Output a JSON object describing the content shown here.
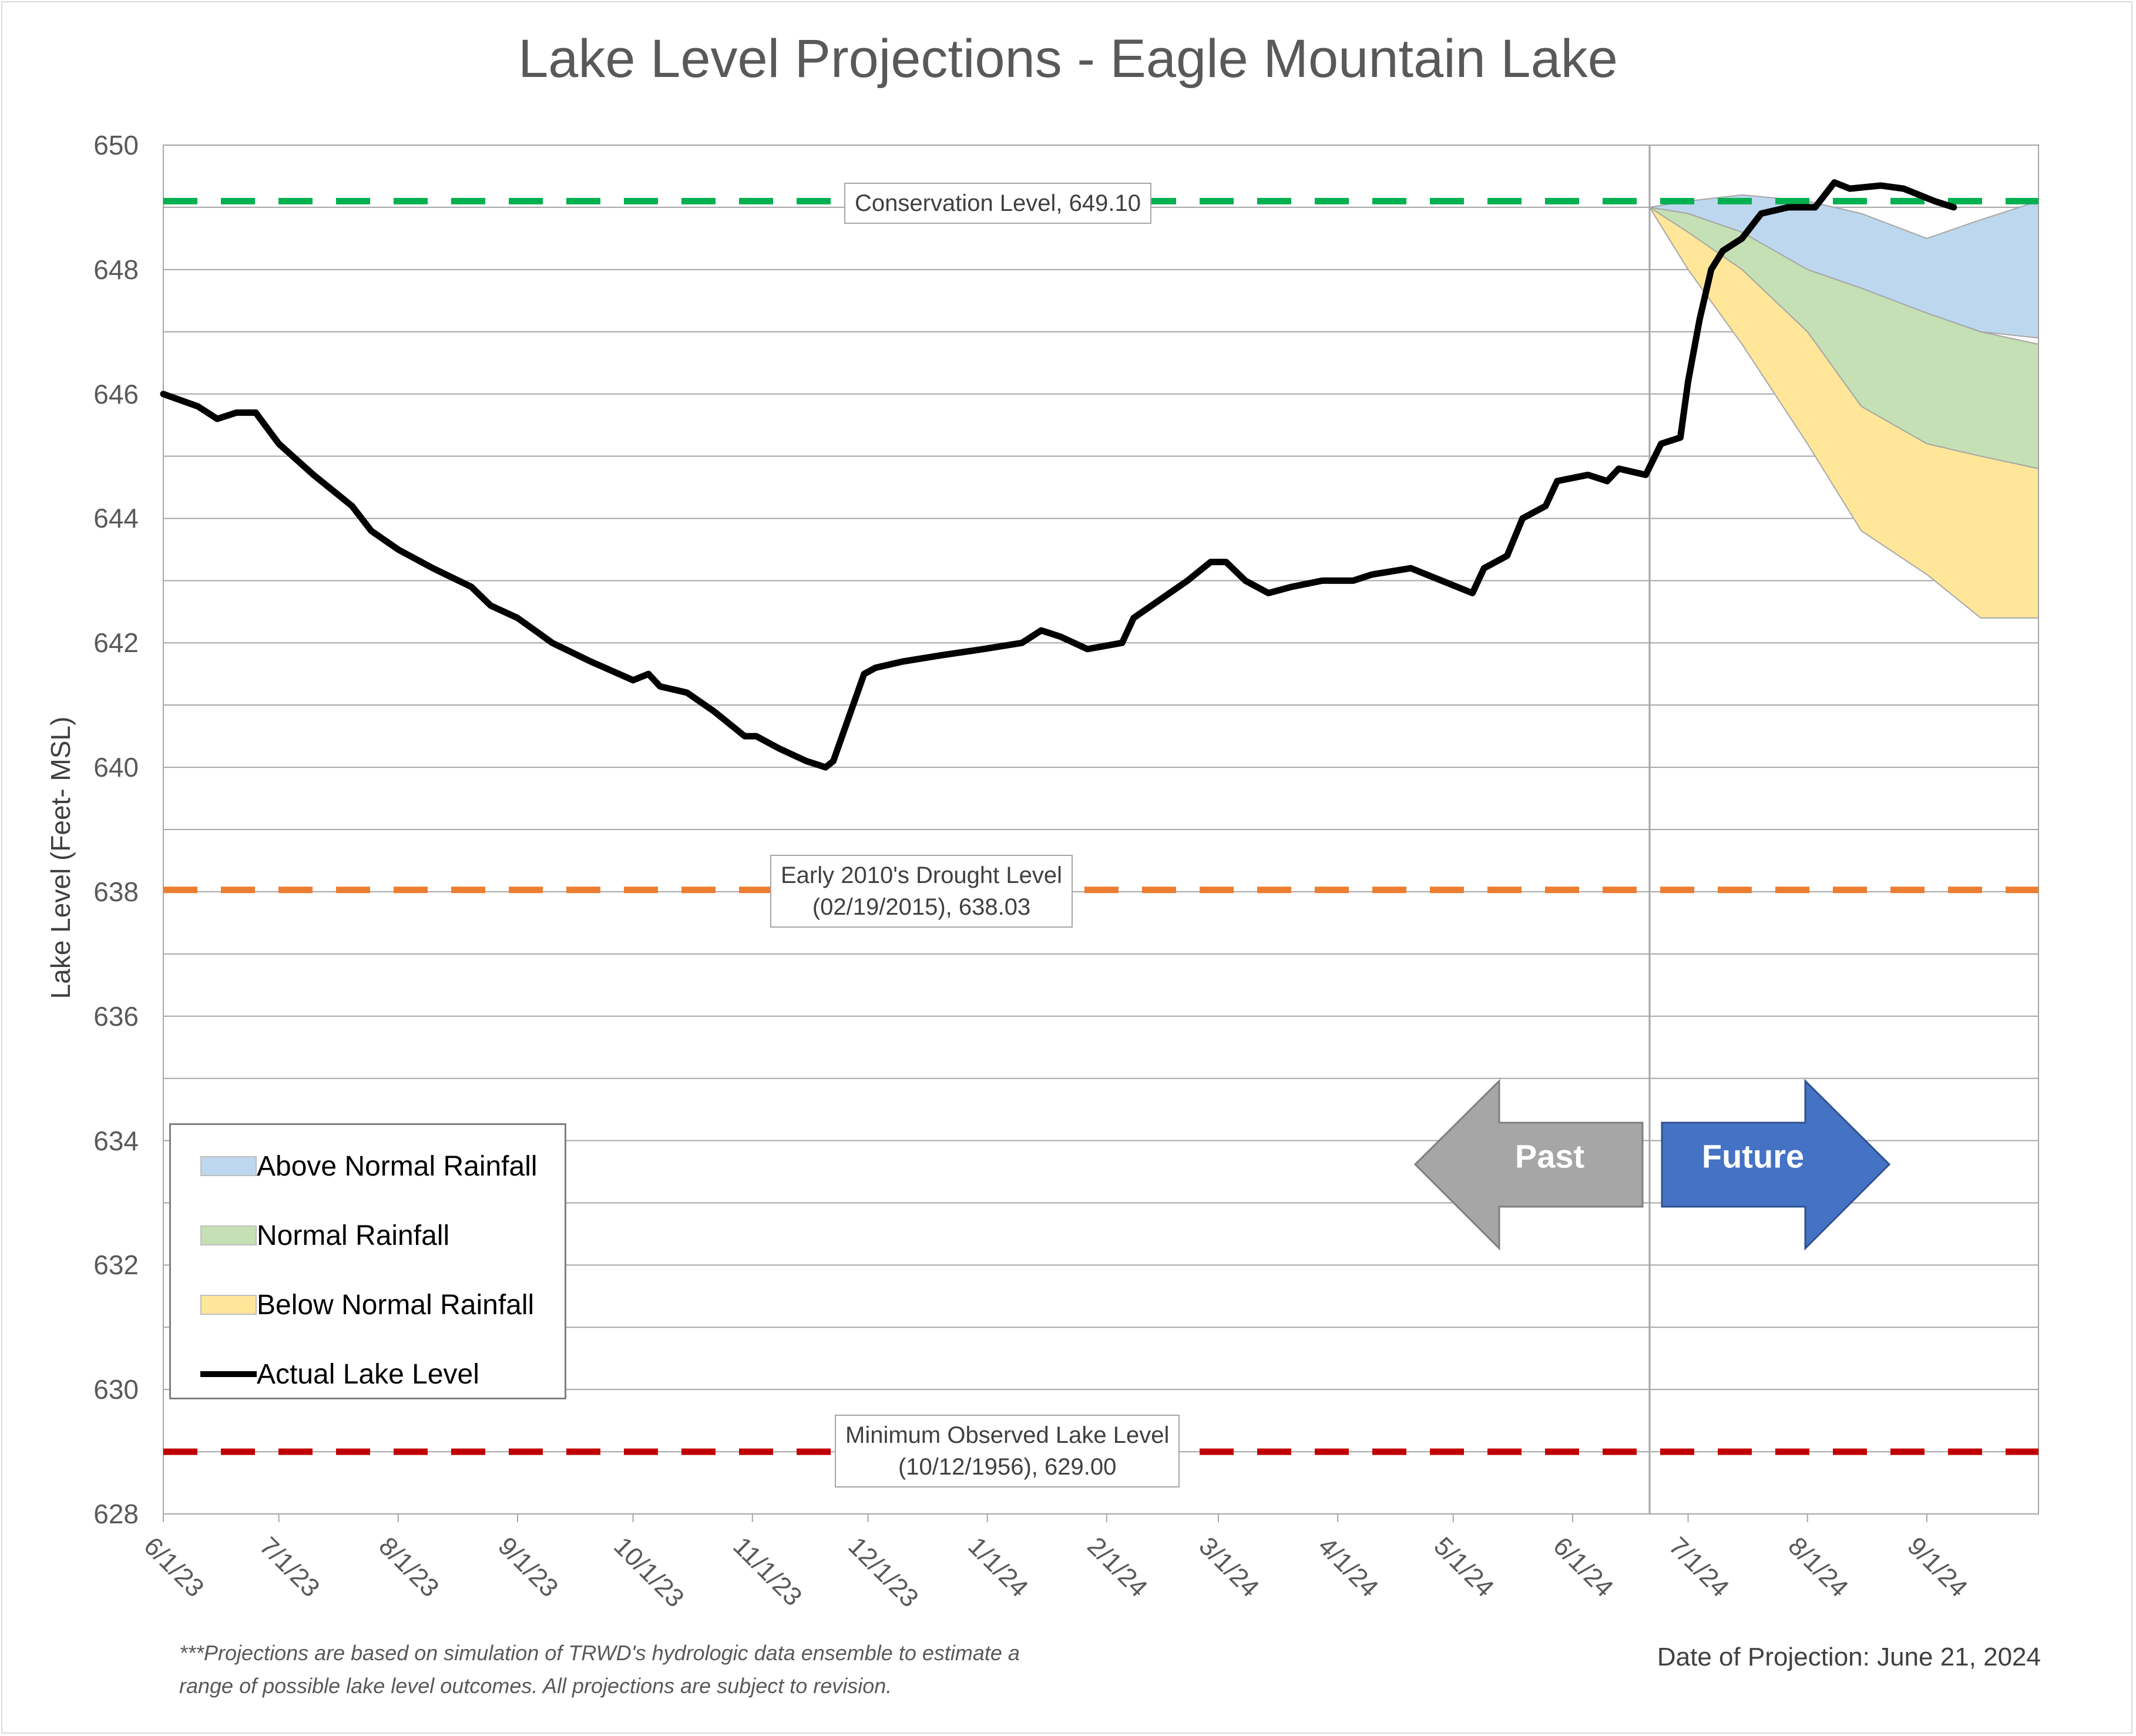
{
  "chart_data": {
    "type": "line",
    "title": "Lake Level Projections - Eagle Mountain Lake",
    "ylabel": "Lake Level (Feet- MSL)",
    "xlabel": "",
    "ylim": [
      628,
      650
    ],
    "y_ticks": [
      "628",
      "630",
      "632",
      "634",
      "636",
      "638",
      "640",
      "642",
      "644",
      "646",
      "648",
      "650"
    ],
    "x_ticks": [
      "6/1/23",
      "7/1/23",
      "8/1/23",
      "9/1/23",
      "10/1/23",
      "11/1/23",
      "12/1/23",
      "1/1/24",
      "2/1/24",
      "3/1/24",
      "4/1/24",
      "5/1/24",
      "6/1/24",
      "7/1/24",
      "8/1/24",
      "9/1/24"
    ],
    "x_range": [
      "6/1/23",
      "9/30/24"
    ],
    "grid": true,
    "projection_date_line": "6/21/24",
    "reference_lines": [
      {
        "label": "Conservation Level, 649.10",
        "value": 649.1,
        "color": "#00b050"
      },
      {
        "label_lines": [
          "Early 2010's Drought Level",
          "(02/19/2015), 638.03"
        ],
        "value": 638.03,
        "color": "#ed7d31"
      },
      {
        "label_lines": [
          "Minimum Observed Lake Level",
          "(10/12/1956), 629.00"
        ],
        "value": 629.0,
        "color": "#c00000"
      }
    ],
    "series": [
      {
        "name": "Actual Lake Level",
        "color": "#000000",
        "points": [
          [
            "6/1/23",
            646.0
          ],
          [
            "6/10/23",
            645.8
          ],
          [
            "6/15/23",
            645.6
          ],
          [
            "6/20/23",
            645.7
          ],
          [
            "6/25/23",
            645.7
          ],
          [
            "7/1/23",
            645.2
          ],
          [
            "7/10/23",
            644.7
          ],
          [
            "7/20/23",
            644.2
          ],
          [
            "7/25/23",
            643.8
          ],
          [
            "8/1/23",
            643.5
          ],
          [
            "8/10/23",
            643.2
          ],
          [
            "8/20/23",
            642.9
          ],
          [
            "8/25/23",
            642.6
          ],
          [
            "9/1/23",
            642.4
          ],
          [
            "9/10/23",
            642.0
          ],
          [
            "9/20/23",
            641.7
          ],
          [
            "10/1/23",
            641.4
          ],
          [
            "10/5/23",
            641.5
          ],
          [
            "10/8/23",
            641.3
          ],
          [
            "10/15/23",
            641.2
          ],
          [
            "10/22/23",
            640.9
          ],
          [
            "10/30/23",
            640.5
          ],
          [
            "11/2/23",
            640.5
          ],
          [
            "11/8/23",
            640.3
          ],
          [
            "11/15/23",
            640.1
          ],
          [
            "11/20/23",
            640.0
          ],
          [
            "11/22/23",
            640.1
          ],
          [
            "11/26/23",
            640.8
          ],
          [
            "11/30/23",
            641.5
          ],
          [
            "12/3/23",
            641.6
          ],
          [
            "12/10/23",
            641.7
          ],
          [
            "12/20/23",
            641.8
          ],
          [
            "12/31/23",
            641.9
          ],
          [
            "1/10/24",
            642.0
          ],
          [
            "1/15/24",
            642.2
          ],
          [
            "1/20/24",
            642.1
          ],
          [
            "1/27/24",
            641.9
          ],
          [
            "2/5/24",
            642.0
          ],
          [
            "2/8/24",
            642.4
          ],
          [
            "2/15/24",
            642.7
          ],
          [
            "2/22/24",
            643.0
          ],
          [
            "2/28/24",
            643.3
          ],
          [
            "3/3/24",
            643.3
          ],
          [
            "3/8/24",
            643.0
          ],
          [
            "3/14/24",
            642.8
          ],
          [
            "3/20/24",
            642.9
          ],
          [
            "3/28/24",
            643.0
          ],
          [
            "4/5/24",
            643.0
          ],
          [
            "4/10/24",
            643.1
          ],
          [
            "4/20/24",
            643.2
          ],
          [
            "4/28/24",
            643.0
          ],
          [
            "5/6/24",
            642.8
          ],
          [
            "5/9/24",
            643.2
          ],
          [
            "5/15/24",
            643.4
          ],
          [
            "5/19/24",
            644.0
          ],
          [
            "5/25/24",
            644.2
          ],
          [
            "5/28/24",
            644.6
          ],
          [
            "6/5/24",
            644.7
          ],
          [
            "6/10/24",
            644.6
          ],
          [
            "6/13/24",
            644.8
          ],
          [
            "6/20/24",
            644.7
          ],
          [
            "6/24/24",
            645.2
          ],
          [
            "6/29/24",
            645.3
          ],
          [
            "7/1/24",
            646.2
          ],
          [
            "7/4/24",
            647.2
          ],
          [
            "7/7/24",
            648.0
          ],
          [
            "7/10/24",
            648.3
          ],
          [
            "7/15/24",
            648.5
          ],
          [
            "7/20/24",
            648.9
          ],
          [
            "7/27/24",
            649.0
          ],
          [
            "8/3/24",
            649.0
          ],
          [
            "8/8/24",
            649.4
          ],
          [
            "8/12/24",
            649.3
          ],
          [
            "8/20/24",
            649.35
          ],
          [
            "8/26/24",
            649.3
          ],
          [
            "9/3/24",
            649.1
          ],
          [
            "9/8/24",
            649.0
          ]
        ]
      }
    ],
    "projection_bands": [
      {
        "name": "Above Normal Rainfall",
        "color": "#bdd7ee",
        "upper": [
          [
            "6/21/24",
            649.0
          ],
          [
            "7/1/24",
            649.1
          ],
          [
            "7/15/24",
            649.2
          ],
          [
            "8/1/24",
            649.1
          ],
          [
            "8/15/24",
            648.9
          ],
          [
            "9/1/24",
            648.5
          ],
          [
            "9/15/24",
            648.8
          ],
          [
            "9/30/24",
            649.1
          ]
        ],
        "lower": [
          [
            "6/21/24",
            649.0
          ],
          [
            "7/1/24",
            648.9
          ],
          [
            "7/15/24",
            648.6
          ],
          [
            "8/1/24",
            648.0
          ],
          [
            "8/15/24",
            647.7
          ],
          [
            "9/1/24",
            647.3
          ],
          [
            "9/15/24",
            647.0
          ],
          [
            "9/30/24",
            646.9
          ]
        ]
      },
      {
        "name": "Normal Rainfall",
        "color": "#c5e0b4",
        "upper": [
          [
            "6/21/24",
            649.0
          ],
          [
            "7/1/24",
            648.9
          ],
          [
            "7/15/24",
            648.6
          ],
          [
            "8/1/24",
            648.0
          ],
          [
            "8/15/24",
            647.7
          ],
          [
            "9/1/24",
            647.3
          ],
          [
            "9/15/24",
            647.0
          ],
          [
            "9/30/24",
            646.8
          ]
        ],
        "lower": [
          [
            "6/21/24",
            649.0
          ],
          [
            "7/1/24",
            648.6
          ],
          [
            "7/15/24",
            648.0
          ],
          [
            "8/1/24",
            647.0
          ],
          [
            "8/15/24",
            645.8
          ],
          [
            "9/1/24",
            645.2
          ],
          [
            "9/15/24",
            645.0
          ],
          [
            "9/30/24",
            644.8
          ]
        ]
      },
      {
        "name": "Below Normal Rainfall",
        "color": "#ffe699",
        "upper": [
          [
            "6/21/24",
            649.0
          ],
          [
            "7/1/24",
            648.6
          ],
          [
            "7/15/24",
            648.0
          ],
          [
            "8/1/24",
            647.0
          ],
          [
            "8/15/24",
            645.8
          ],
          [
            "9/1/24",
            645.2
          ],
          [
            "9/15/24",
            645.0
          ],
          [
            "9/30/24",
            644.8
          ]
        ],
        "lower": [
          [
            "6/21/24",
            649.0
          ],
          [
            "7/1/24",
            648.0
          ],
          [
            "7/15/24",
            646.8
          ],
          [
            "8/1/24",
            645.2
          ],
          [
            "8/15/24",
            643.8
          ],
          [
            "9/1/24",
            643.1
          ],
          [
            "9/15/24",
            642.4
          ],
          [
            "9/30/24",
            642.4
          ]
        ]
      }
    ],
    "legend": {
      "placement": "bottom-left",
      "items": [
        "Above Normal Rainfall",
        "Normal Rainfall",
        "Below Normal Rainfall",
        "Actual Lake Level"
      ]
    },
    "annotations": {
      "past_arrow": "Past",
      "future_arrow": "Future",
      "past_color": "#a6a6a6",
      "future_color": "#4472c4"
    }
  },
  "footnote_lines": [
    "***Projections are based on simulation of TRWD's hydrologic data ensemble to estimate a",
    "range of possible lake level outcomes.  All projections are subject to revision."
  ],
  "projection_date_text": "Date of Projection: June 21, 2024"
}
